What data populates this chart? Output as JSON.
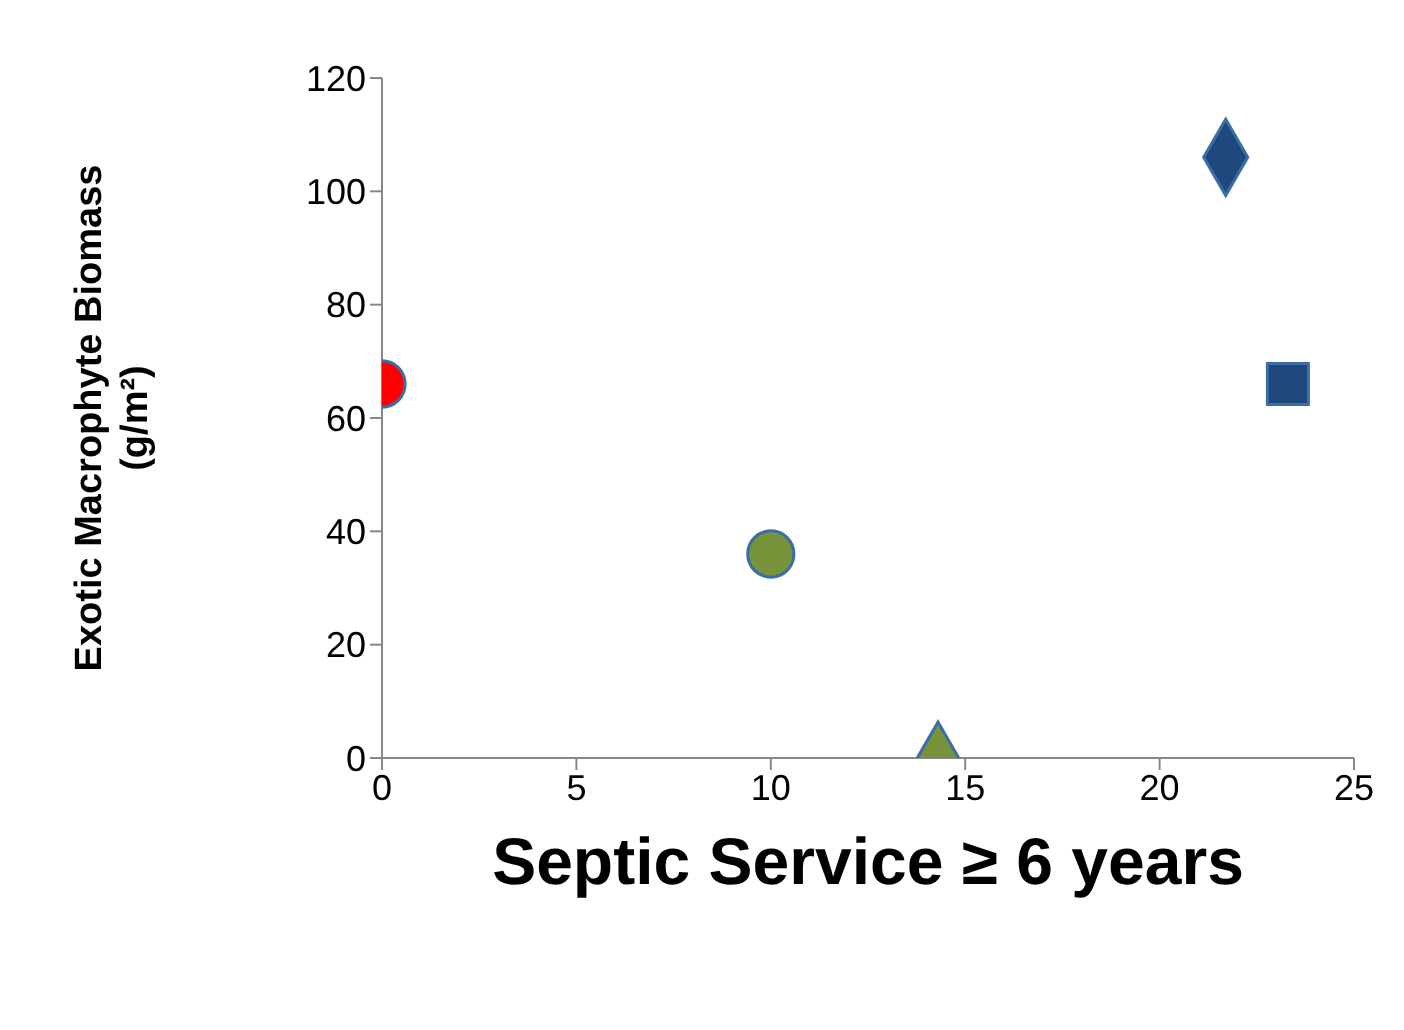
{
  "chart_data": {
    "type": "scatter",
    "xlabel": "Septic Service ≥ 6 years",
    "ylabel": "Exotic Macrophyte Biomass (g/m²)",
    "xlim": [
      0,
      25
    ],
    "xticks": [
      0,
      5,
      10,
      15,
      20,
      25
    ],
    "ylim": [
      0,
      120
    ],
    "yticks": [
      0,
      20,
      40,
      60,
      80,
      100,
      120
    ],
    "grid": false,
    "legend": false,
    "series": [
      {
        "color": "#ff0000",
        "marker": "circle",
        "x": [
          0
        ],
        "values": [
          66
        ]
      },
      {
        "color": "#77933c",
        "marker": "circle",
        "x": [
          10
        ],
        "values": [
          36
        ]
      },
      {
        "color": "#77933c",
        "marker": "triangle",
        "x": [
          14.3
        ],
        "values": [
          0
        ]
      },
      {
        "color": "#1f497d",
        "marker": "diamond",
        "x": [
          21.7
        ],
        "values": [
          106
        ]
      },
      {
        "color": "#1f497d",
        "marker": "square",
        "x": [
          23.3
        ],
        "values": [
          66
        ]
      }
    ]
  }
}
